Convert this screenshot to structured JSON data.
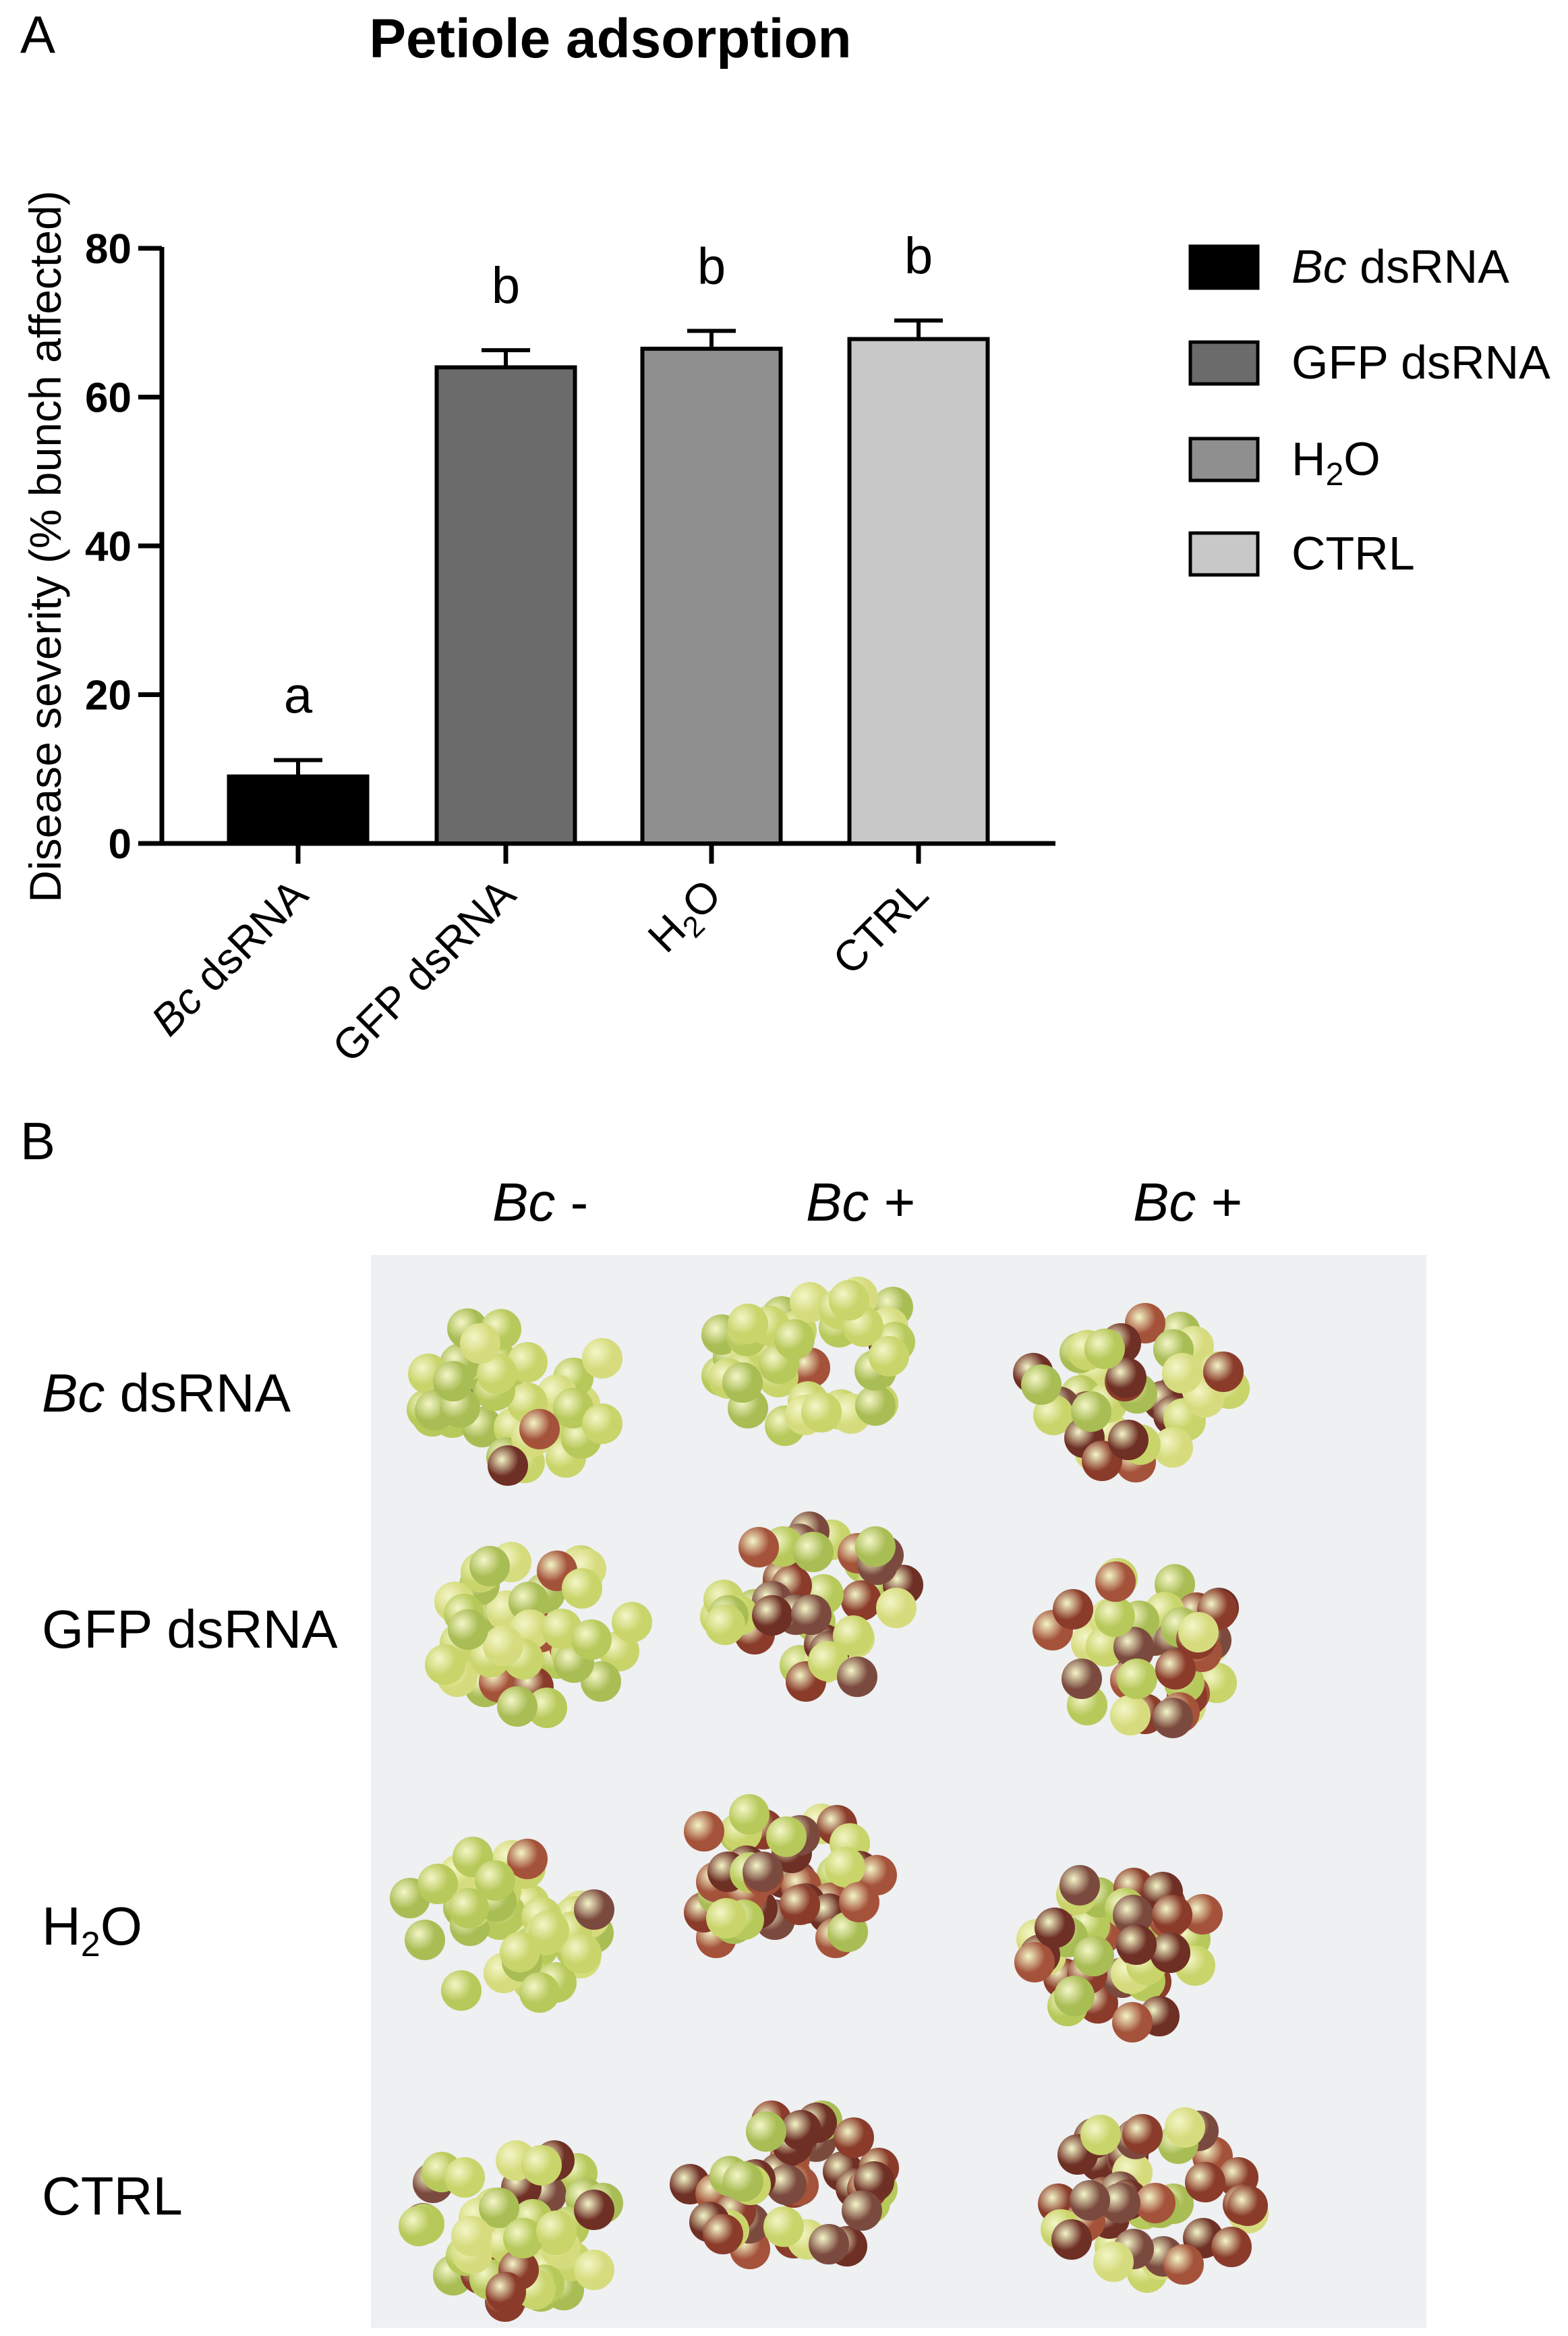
{
  "panel_a": {
    "letter": "A"
  },
  "panel_b": {
    "letter": "B"
  },
  "chart_data": {
    "type": "bar",
    "title": "Petiole adsorption",
    "ylabel": "Disease severity (% bunch affected)",
    "xlabel": "",
    "ylim": [
      0,
      80
    ],
    "yticks": [
      0,
      20,
      40,
      60,
      80
    ],
    "grid": false,
    "legend_placement": "right",
    "categories": [
      {
        "italic": "Bc",
        "rest": " dsRNA"
      },
      {
        "italic": "",
        "rest": "GFP dsRNA"
      },
      {
        "italic": "",
        "rest": "H2O"
      },
      {
        "italic": "",
        "rest": "CTRL"
      }
    ],
    "values": [
      9,
      64,
      66.5,
      67.8
    ],
    "errors": [
      2.2,
      2.3,
      2.4,
      2.5
    ],
    "significance_letters": [
      "a",
      "b",
      "b",
      "b"
    ],
    "colors": [
      "#000000",
      "#6b6b6b",
      "#8f8f8f",
      "#c8c8c8"
    ],
    "legend": [
      {
        "italic": "Bc",
        "rest": " dsRNA",
        "color": "#000000"
      },
      {
        "italic": "",
        "rest": "GFP dsRNA",
        "color": "#6b6b6b"
      },
      {
        "italic": "",
        "rest": "H2O",
        "color": "#8f8f8f"
      },
      {
        "italic": "",
        "rest": "CTRL",
        "color": "#c8c8c8"
      }
    ]
  },
  "photo_panel": {
    "column_labels": [
      {
        "italic": "Bc",
        "rest": " -"
      },
      {
        "italic": "Bc",
        "rest": " +"
      },
      {
        "italic": "Bc",
        "rest": " +"
      }
    ],
    "row_labels": [
      {
        "italic": "Bc",
        "rest": " dsRNA"
      },
      {
        "italic": "",
        "rest": "GFP dsRNA"
      },
      {
        "italic": "",
        "rest": "H2O"
      },
      {
        "italic": "",
        "rest": "CTRL"
      }
    ]
  }
}
